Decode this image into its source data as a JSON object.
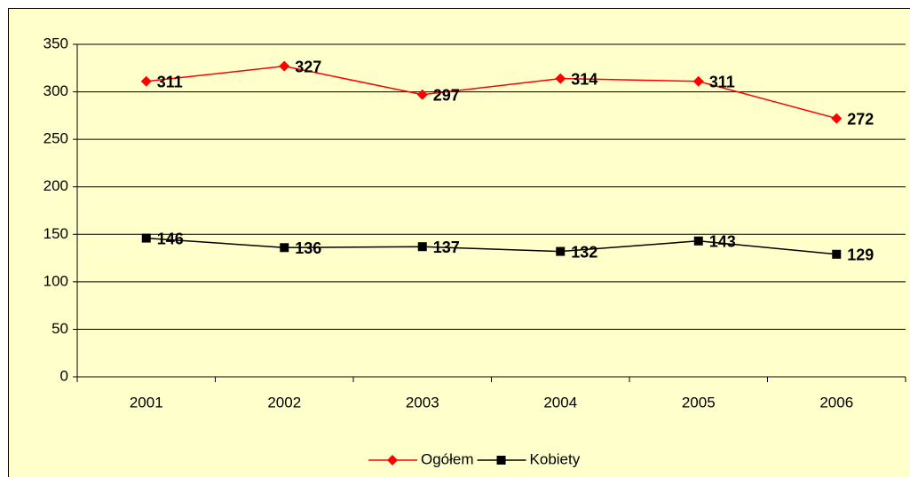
{
  "chart_data": {
    "type": "line",
    "categories": [
      "2001",
      "2002",
      "2003",
      "2004",
      "2005",
      "2006"
    ],
    "series": [
      {
        "name": "Ogółem",
        "color": "#ff0000",
        "marker": "diamond",
        "values": [
          311,
          327,
          297,
          314,
          311,
          272
        ]
      },
      {
        "name": "Kobiety",
        "color": "#000000",
        "marker": "square",
        "values": [
          146,
          136,
          137,
          132,
          143,
          129
        ]
      }
    ],
    "ylim": [
      0,
      350
    ],
    "yticks": [
      0,
      50,
      100,
      150,
      200,
      250,
      300,
      350
    ],
    "grid": true,
    "legend": "bottom"
  }
}
